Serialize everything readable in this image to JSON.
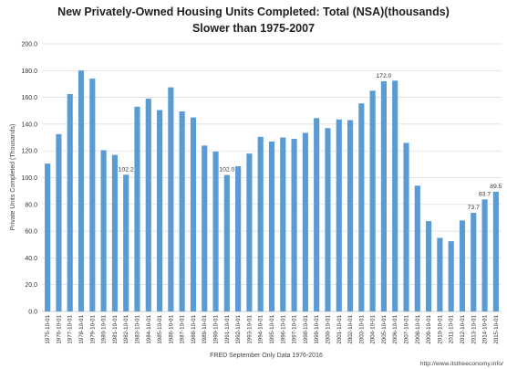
{
  "chart_data": {
    "type": "bar",
    "title": "New Privately-Owned Housing Units Completed: Total (NSA)(thousands)",
    "subtitle": "Slower than 1975-2007",
    "ylabel": "Private Units Completed (Thousands)",
    "xlabel": "FRED September Only Data 1976-2016",
    "source": "http://www.itstheeconomy.info/",
    "ylim": [
      0,
      200
    ],
    "ytick_step": 20,
    "grid": true,
    "bar_color": "#5b9bd5",
    "categories": [
      "1975-10-01",
      "1976-10-01",
      "1977-10-01",
      "1978-10-01",
      "1979-10-01",
      "1980-10-01",
      "1981-10-01",
      "1982-10-01",
      "1983-10-01",
      "1984-10-01",
      "1985-10-01",
      "1986-10-01",
      "1987-10-01",
      "1988-10-01",
      "1989-10-01",
      "1990-10-01",
      "1991-10-01",
      "1992-10-01",
      "1993-10-01",
      "1994-10-01",
      "1995-10-01",
      "1996-10-01",
      "1997-10-01",
      "1998-10-01",
      "1999-10-01",
      "2000-10-01",
      "2001-10-01",
      "2002-10-01",
      "2003-10-01",
      "2004-10-01",
      "2005-10-01",
      "2006-10-01",
      "2007-10-01",
      "2008-10-01",
      "2009-10-01",
      "2010-10-01",
      "2011-10-01",
      "2012-10-01",
      "2013-10-01",
      "2014-10-01",
      "2015-10-01"
    ],
    "values": [
      110.5,
      132.5,
      162.5,
      180.0,
      174.0,
      120.5,
      117.0,
      102.2,
      153.0,
      159.0,
      150.5,
      167.5,
      149.5,
      145.0,
      124.0,
      119.5,
      102.0,
      108.5,
      118.0,
      130.5,
      127.0,
      130.0,
      129.0,
      133.5,
      144.5,
      137.0,
      143.5,
      143.0,
      155.5,
      165.0,
      172.0,
      172.5,
      126.0,
      94.0,
      67.5,
      55.0,
      52.5,
      68.0,
      73.7,
      83.7,
      89.5
    ],
    "annotations": [
      {
        "index": 7,
        "text": "102.2"
      },
      {
        "index": 16,
        "text": "102.0"
      },
      {
        "index": 30,
        "text": "172.0"
      },
      {
        "index": 38,
        "text": "73.7"
      },
      {
        "index": 39,
        "text": "83.7"
      },
      {
        "index": 40,
        "text": "89.5"
      }
    ]
  }
}
